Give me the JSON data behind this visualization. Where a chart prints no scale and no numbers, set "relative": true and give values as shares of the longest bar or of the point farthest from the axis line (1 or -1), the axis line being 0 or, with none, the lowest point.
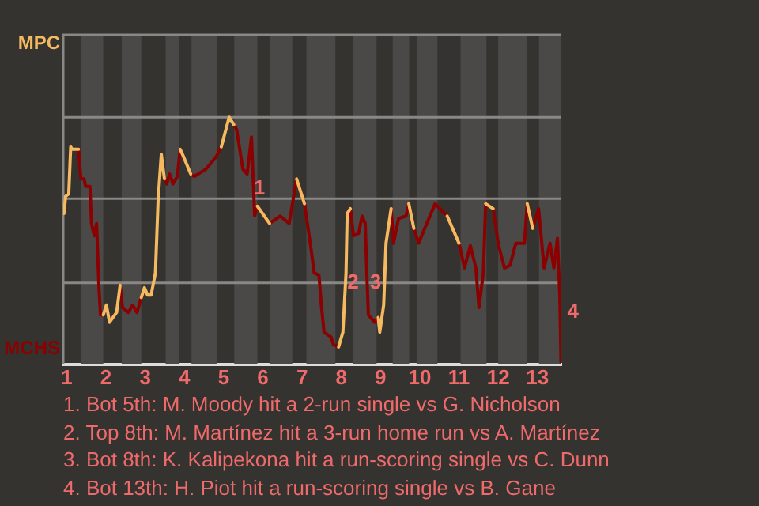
{
  "chart_data": {
    "type": "line",
    "relative": true,
    "marker": "none",
    "xlim": [
      0.91,
      13.61
    ],
    "xticks": [
      1,
      2,
      3,
      4,
      5,
      6,
      7,
      8,
      9,
      10,
      11,
      12,
      13
    ],
    "x": [
      0.93,
      0.97,
      1.05,
      1.1,
      1.14,
      1.3,
      1.36,
      1.44,
      1.48,
      1.59,
      1.63,
      1.7,
      1.76,
      1.82,
      1.86,
      1.93,
      2.01,
      2.09,
      2.27,
      2.36,
      2.42,
      2.57,
      2.68,
      2.79,
      2.9,
      2.98,
      3.06,
      3.15,
      3.26,
      3.33,
      3.41,
      3.49,
      3.55,
      3.62,
      3.71,
      3.82,
      3.89,
      3.95,
      4.16,
      4.25,
      4.55,
      4.81,
      4.94,
      5.14,
      5.26,
      5.33,
      5.49,
      5.6,
      5.71,
      5.79,
      5.86,
      6.17,
      6.44,
      6.67,
      6.86,
      7.06,
      7.19,
      7.31,
      7.43,
      7.49,
      7.56,
      7.74,
      7.8,
      7.93,
      8.04,
      8.12,
      8.15,
      8.23,
      8.31,
      8.44,
      8.53,
      8.61,
      8.65,
      8.69,
      8.85,
      8.94,
      8.98,
      9.08,
      9.14,
      9.27,
      9.33,
      9.46,
      9.65,
      9.72,
      9.85,
      9.97,
      10.39,
      10.7,
      11,
      11.14,
      11.29,
      11.43,
      11.51,
      11.62,
      11.68,
      11.87,
      12.01,
      12.16,
      12.3,
      12.45,
      12.67,
      12.74,
      12.88,
      13.03,
      13.17,
      13.32,
      13.42,
      13.51,
      13.57,
      13.6
    ],
    "series": [
      {
        "color": "#8b0000",
        "values": [
          null,
          null,
          null,
          null,
          null,
          0.87,
          0.75,
          0.75,
          0.72,
          0.72,
          0.57,
          0.52,
          0.57,
          0.31,
          0.2,
          0.2,
          null,
          null,
          null,
          0.32,
          0.23,
          0.21,
          0.24,
          0.21,
          0.27,
          null,
          null,
          null,
          null,
          null,
          null,
          0.75,
          0.73,
          0.77,
          0.73,
          0.76,
          0.87,
          null,
          0.77,
          0.76,
          0.79,
          0.84,
          0.88,
          null,
          0.97,
          0.95,
          0.79,
          0.77,
          0.92,
          0.6,
          0.64,
          0.57,
          0.6,
          0.57,
          0.75,
          0.65,
          0.51,
          0.37,
          0.36,
          0.24,
          0.13,
          0.11,
          0.08,
          0.07,
          null,
          null,
          null,
          0.63,
          0.52,
          0.53,
          0.6,
          0.57,
          0.37,
          0.2,
          0.17,
          0.19,
          null,
          null,
          null,
          0.63,
          0.49,
          0.59,
          0.6,
          0.65,
          0.55,
          0.49,
          0.65,
          0.6,
          0.49,
          0.39,
          0.48,
          0.39,
          0.23,
          0.37,
          0.65,
          0.63,
          0.48,
          0.39,
          0.4,
          0.49,
          0.49,
          0.65,
          0.55,
          0.63,
          0.39,
          0.49,
          0.39,
          0.51,
          0.28,
          0.01
        ]
      },
      {
        "color": "#f5b95f",
        "values": [
          0.61,
          0.68,
          0.69,
          0.88,
          0.87,
          0.87,
          null,
          null,
          null,
          null,
          null,
          null,
          null,
          null,
          null,
          0.2,
          0.24,
          0.17,
          0.21,
          0.32,
          null,
          null,
          null,
          null,
          0.27,
          0.31,
          0.28,
          0.28,
          0.37,
          0.67,
          0.85,
          0.75,
          null,
          null,
          null,
          null,
          0.87,
          0.85,
          0.77,
          null,
          null,
          null,
          0.88,
          1,
          0.97,
          null,
          null,
          null,
          null,
          null,
          0.64,
          0.57,
          null,
          null,
          0.75,
          0.65,
          null,
          null,
          null,
          null,
          null,
          null,
          null,
          0.07,
          0.13,
          0.37,
          0.61,
          0.63,
          null,
          null,
          null,
          null,
          null,
          null,
          null,
          0.19,
          0.13,
          0.24,
          0.49,
          0.63,
          null,
          null,
          null,
          0.65,
          0.55,
          null,
          null,
          0.6,
          0.49,
          null,
          null,
          null,
          null,
          null,
          0.65,
          0.63,
          null,
          null,
          null,
          null,
          null,
          0.65,
          0.55,
          null,
          null,
          null,
          null,
          null,
          null,
          null
        ]
      }
    ],
    "bands": [
      {
        "axis": "x",
        "from": 1.36,
        "to": 1.93,
        "color": "#4a4948"
      },
      {
        "axis": "x",
        "from": 2.4,
        "to": 2.9,
        "color": "#4a4948"
      },
      {
        "axis": "x",
        "from": 3.52,
        "to": 3.87,
        "color": "#4a4948"
      },
      {
        "axis": "x",
        "from": 4.18,
        "to": 4.82,
        "color": "#4a4948"
      },
      {
        "axis": "x",
        "from": 5.27,
        "to": 5.86,
        "color": "#4a4948"
      },
      {
        "axis": "x",
        "from": 6.17,
        "to": 6.75,
        "color": "#4a4948"
      },
      {
        "axis": "x",
        "from": 7.11,
        "to": 7.85,
        "color": "#4a4948"
      },
      {
        "axis": "x",
        "from": 8.29,
        "to": 8.9,
        "color": "#4a4948"
      },
      {
        "axis": "x",
        "from": 9.31,
        "to": 9.73,
        "color": "#4a4948"
      },
      {
        "axis": "x",
        "from": 9.92,
        "to": 10.45,
        "color": "#4a4948"
      },
      {
        "axis": "x",
        "from": 11.04,
        "to": 11.7,
        "color": "#4a4948"
      },
      {
        "axis": "x",
        "from": 12,
        "to": 12.74,
        "color": "#4a4948"
      },
      {
        "axis": "x",
        "from": 13.04,
        "to": 13.61,
        "color": "#4a4948"
      }
    ],
    "ref_lines": [
      {
        "axis": "y",
        "value": 0.33,
        "color": "#8a8885"
      },
      {
        "axis": "y",
        "value": 0.67,
        "color": "#8a8885"
      },
      {
        "axis": "y",
        "value": 1,
        "color": "#8a8885"
      }
    ],
    "annotations": [
      "MPC",
      "MCHS",
      {
        "text": "1",
        "x": 5.91,
        "y": 0.71
      },
      {
        "text": "2",
        "x": 8.3,
        "y": 0.33
      },
      {
        "text": "3",
        "x": 8.87,
        "y": 0.33
      },
      {
        "text": "4",
        "x": 13.6,
        "y": 0.21
      },
      "1. Bot 5th: M. Moody hit a 2-run single vs G. Nicholson",
      "2. Top 8th: M. Martínez hit a 3-run home run vs A. Martínez",
      "3. Bot 8th: K. Kalipekona hit a run-scoring single vs C. Dunn",
      "4. Bot 13th: H. Piot hit a run-scoring single vs B. Gane"
    ]
  }
}
